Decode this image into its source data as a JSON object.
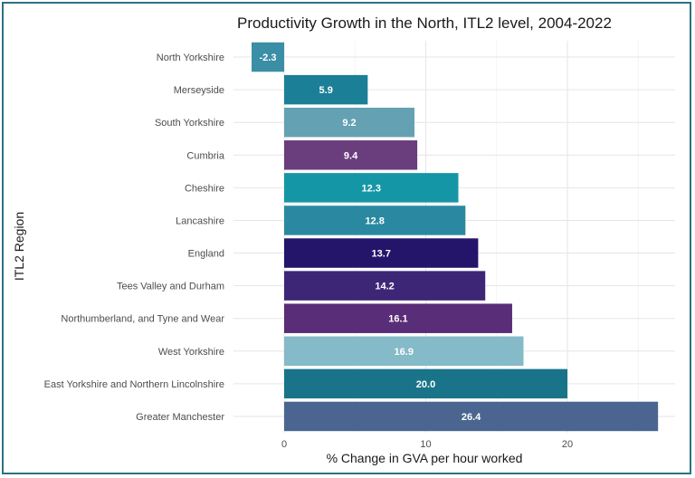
{
  "chart_data": {
    "type": "bar",
    "orientation": "horizontal",
    "title": "Productivity Growth in the North, ITL2 level, 2004-2022",
    "xlabel": "% Change in GVA per hour worked",
    "ylabel": "ITL2 Region",
    "xlim": [
      -2.5,
      27.5
    ],
    "xticks": [
      0,
      10,
      20
    ],
    "grid": true,
    "categories": [
      "North Yorkshire",
      "Merseyside",
      "South Yorkshire",
      "Cumbria",
      "Cheshire",
      "Lancashire",
      "England",
      "Tees Valley and Durham",
      "Northumberland, and Tyne and Wear",
      "West Yorkshire",
      "East Yorkshire and Northern Lincolnshire",
      "Greater Manchester"
    ],
    "values": [
      -2.3,
      5.9,
      9.2,
      9.4,
      12.3,
      12.8,
      13.7,
      14.2,
      16.1,
      16.9,
      20.0,
      26.4
    ],
    "value_labels": [
      "-2.3",
      "5.9",
      "9.2",
      "9.4",
      "12.3",
      "12.8",
      "13.7",
      "14.2",
      "16.1",
      "16.9",
      "20.0",
      "26.4"
    ],
    "colors": [
      "#3a8ea5",
      "#1b7f97",
      "#64a1b3",
      "#6a3d7c",
      "#1596a6",
      "#2a89a0",
      "#24156b",
      "#3e2677",
      "#5a2d78",
      "#85bac8",
      "#1a7489",
      "#4a6690"
    ]
  }
}
